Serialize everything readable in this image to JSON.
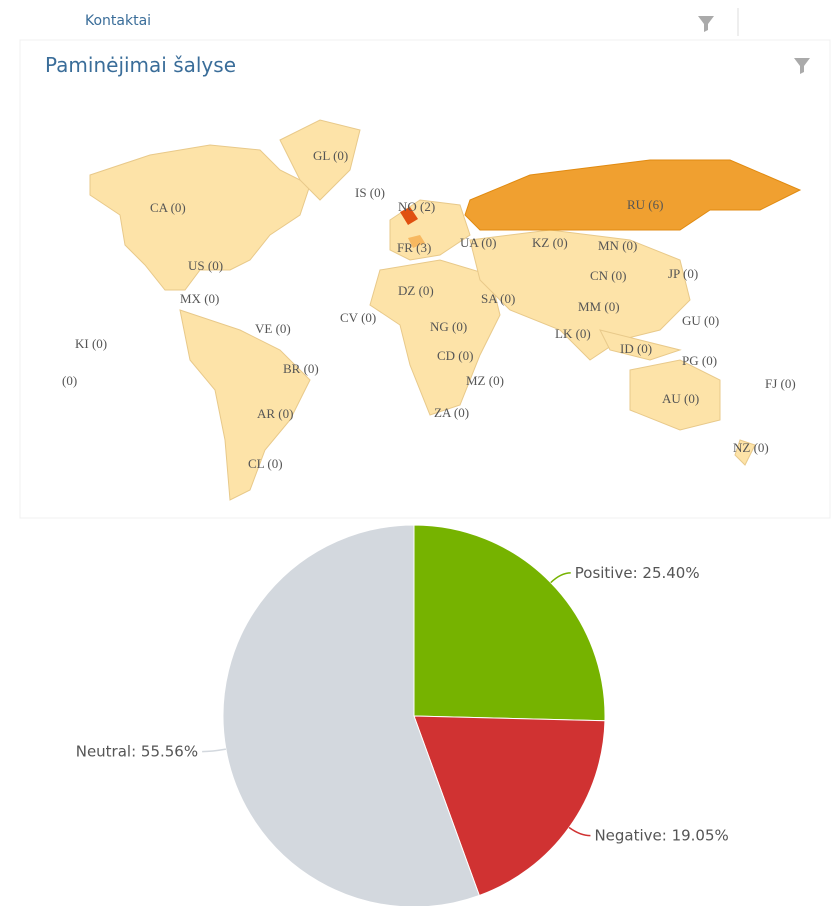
{
  "header": {
    "title": "Kontaktai"
  },
  "map": {
    "title": "Paminėjimai šalyse",
    "labels": [
      "GL (0)",
      "IS (0)",
      "NO (2)",
      "RU (6)",
      "CA (0)",
      "FR (3)",
      "UA (0)",
      "KZ (0)",
      "MN (0)",
      "US (0)",
      "CN (0)",
      "JP (0)",
      "DZ (0)",
      "MX (0)",
      "SA (0)",
      "MM (0)",
      "CV (0)",
      "VE (0)",
      "NG (0)",
      "GU (0)",
      "KI (0)",
      "LK (0)",
      "CD (0)",
      "ID (0)",
      "PG (0)",
      "(0)",
      "BR (0)",
      "MZ (0)",
      "FJ (0)",
      "AU (0)",
      "AR (0)",
      "ZA (0)",
      "NZ (0)",
      "CL (0)"
    ]
  },
  "chart_data": {
    "type": "pie",
    "values": [
      25.4,
      19.05,
      55.56
    ],
    "value_labels": [
      "Positive: 25.40%",
      "Negative: 19.05%",
      "Neutral: 55.56%"
    ],
    "colors": [
      "#76b300",
      "#d03232",
      "#d3d8de"
    ]
  }
}
